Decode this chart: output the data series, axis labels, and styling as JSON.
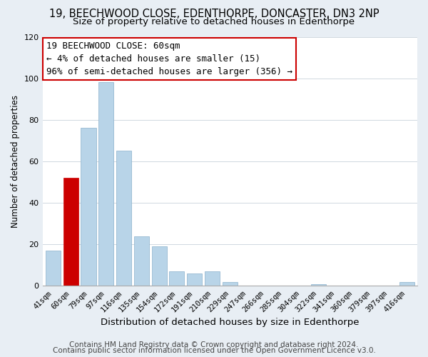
{
  "title": "19, BEECHWOOD CLOSE, EDENTHORPE, DONCASTER, DN3 2NP",
  "subtitle": "Size of property relative to detached houses in Edenthorpe",
  "xlabel": "Distribution of detached houses by size in Edenthorpe",
  "ylabel": "Number of detached properties",
  "bar_labels": [
    "41sqm",
    "60sqm",
    "79sqm",
    "97sqm",
    "116sqm",
    "135sqm",
    "154sqm",
    "172sqm",
    "191sqm",
    "210sqm",
    "229sqm",
    "247sqm",
    "266sqm",
    "285sqm",
    "304sqm",
    "322sqm",
    "341sqm",
    "360sqm",
    "379sqm",
    "397sqm",
    "416sqm"
  ],
  "bar_values": [
    17,
    52,
    76,
    98,
    65,
    24,
    19,
    7,
    6,
    7,
    2,
    0,
    0,
    0,
    0,
    1,
    0,
    0,
    0,
    0,
    2
  ],
  "bar_color_normal": "#b8d4e8",
  "bar_color_highlight": "#cc0000",
  "highlight_index": 1,
  "ylim": [
    0,
    120
  ],
  "yticks": [
    0,
    20,
    40,
    60,
    80,
    100,
    120
  ],
  "annotation_title": "19 BEECHWOOD CLOSE: 60sqm",
  "annotation_line1": "← 4% of detached houses are smaller (15)",
  "annotation_line2": "96% of semi-detached houses are larger (356) →",
  "annotation_box_color": "#ffffff",
  "annotation_box_edge": "#cc0000",
  "footer1": "Contains HM Land Registry data © Crown copyright and database right 2024.",
  "footer2": "Contains public sector information licensed under the Open Government Licence v3.0.",
  "background_color": "#e8eef4",
  "plot_background": "#ffffff",
  "title_fontsize": 10.5,
  "subtitle_fontsize": 9.5,
  "xlabel_fontsize": 9.5,
  "ylabel_fontsize": 8.5,
  "footer_fontsize": 7.5,
  "ann_fontsize": 9.0
}
